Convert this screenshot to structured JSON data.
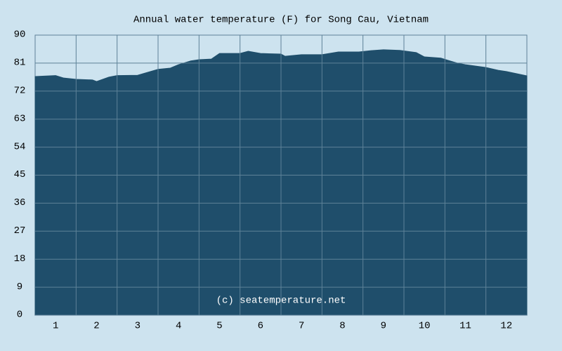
{
  "chart_data": {
    "type": "area",
    "title": "Annual water temperature (F) for Song Cau, Vietnam",
    "watermark": "(c) seatemperature.net",
    "x": [
      0.5,
      1,
      1.2,
      1.5,
      1.9,
      2,
      2.3,
      2.5,
      3,
      3.5,
      3.8,
      4,
      4.3,
      4.5,
      4.8,
      5,
      5.5,
      5.7,
      6,
      6.5,
      6.6,
      7,
      7.5,
      7.9,
      8,
      8.4,
      8.7,
      9,
      9.4,
      9.8,
      10,
      10.4,
      10.8,
      11,
      11.5,
      11.8,
      12,
      12.5
    ],
    "values": [
      76.7,
      77.0,
      76.2,
      75.8,
      75.6,
      75.1,
      76.5,
      77.0,
      77.1,
      79.0,
      79.4,
      80.5,
      81.7,
      82.1,
      82.3,
      84.1,
      84.1,
      84.8,
      84.1,
      83.9,
      83.2,
      83.7,
      83.7,
      84.6,
      84.6,
      84.6,
      85.0,
      85.3,
      85.1,
      84.4,
      83.0,
      82.6,
      81.0,
      80.5,
      79.6,
      78.7,
      78.3,
      76.9
    ],
    "color": "#1f4e6b",
    "xlim": [
      0.5,
      12.5
    ],
    "xticks": [
      1,
      2,
      3,
      4,
      5,
      6,
      7,
      8,
      9,
      10,
      11,
      12
    ],
    "ylim": [
      0,
      90
    ],
    "yticks": [
      0,
      9,
      18,
      27,
      36,
      45,
      54,
      63,
      72,
      81,
      90
    ],
    "grid": true
  }
}
